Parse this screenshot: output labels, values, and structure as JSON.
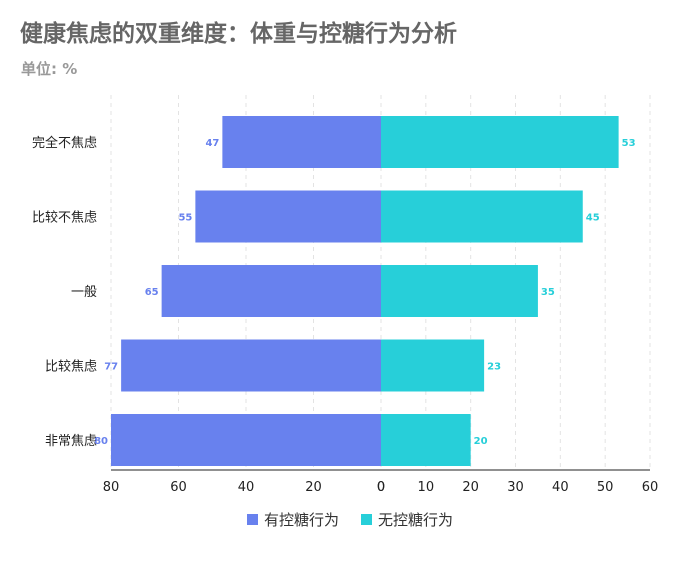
{
  "title": "健康焦虑的双重维度：体重与控糖行为分析",
  "subtitle": "单位: %",
  "colors": {
    "left": "#6881EE",
    "right": "#27CFD9",
    "grid": "#e3e3e3",
    "axis": "#222222"
  },
  "chart_data": {
    "type": "bar",
    "orientation": "horizontal-diverging",
    "categories": [
      "完全不焦虑",
      "比较不焦虑",
      "一般",
      "比较焦虑",
      "非常焦虑"
    ],
    "series": [
      {
        "name": "有控糖行为",
        "values": [
          47,
          55,
          65,
          77,
          80
        ],
        "color": "#6881EE"
      },
      {
        "name": "无控糖行为",
        "values": [
          53,
          45,
          35,
          23,
          20
        ],
        "color": "#27CFD9"
      }
    ],
    "left_axis": {
      "ticks": [
        80,
        60,
        40,
        20,
        0
      ],
      "range": [
        0,
        80
      ]
    },
    "right_axis": {
      "ticks": [
        0,
        10,
        20,
        30,
        40,
        50,
        60
      ],
      "range": [
        0,
        60
      ]
    },
    "legend_position": "bottom",
    "grid": "vertical-dashed"
  },
  "legend": [
    {
      "label": "有控糖行为",
      "color": "#6881EE"
    },
    {
      "label": "无控糖行为",
      "color": "#27CFD9"
    }
  ]
}
